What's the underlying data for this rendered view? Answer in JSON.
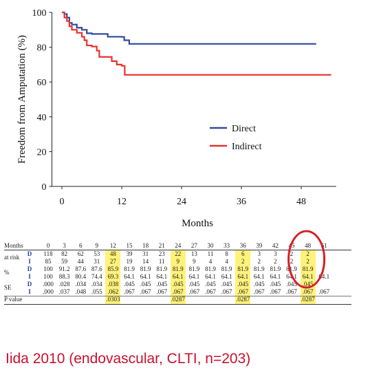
{
  "chart_data": {
    "type": "line",
    "xlabel": "Months",
    "ylabel": "Freedom from Amputation (%)",
    "xlim": [
      -2,
      55
    ],
    "ylim": [
      0,
      100
    ],
    "x_ticks": [
      "0",
      "12",
      "24",
      "36",
      "48"
    ],
    "y_ticks": [
      "0",
      "20",
      "40",
      "60",
      "80",
      "100"
    ],
    "legend_position": "right-middle",
    "series": [
      {
        "name": "Direct",
        "color": "#2e4a9e",
        "points": [
          [
            0,
            100
          ],
          [
            0.5,
            99
          ],
          [
            1,
            97
          ],
          [
            1.5,
            94
          ],
          [
            2,
            93
          ],
          [
            3,
            91.2
          ],
          [
            4,
            90
          ],
          [
            5,
            88
          ],
          [
            6,
            87.6
          ],
          [
            9,
            87.6
          ],
          [
            9.2,
            86
          ],
          [
            12,
            85.9
          ],
          [
            12.5,
            84
          ],
          [
            13.5,
            81.9
          ],
          [
            51,
            81.9
          ]
        ]
      },
      {
        "name": "Indirect",
        "color": "#e8322e",
        "points": [
          [
            0,
            100
          ],
          [
            0.5,
            97
          ],
          [
            1,
            95
          ],
          [
            1.5,
            92
          ],
          [
            2,
            90
          ],
          [
            3,
            88.3
          ],
          [
            4,
            86
          ],
          [
            4.5,
            84
          ],
          [
            5,
            81
          ],
          [
            6,
            80.4
          ],
          [
            7,
            78
          ],
          [
            7.5,
            74.4
          ],
          [
            9,
            74.4
          ],
          [
            10,
            72
          ],
          [
            11,
            70
          ],
          [
            12,
            69.3
          ],
          [
            12.6,
            64.1
          ],
          [
            54,
            64.1
          ]
        ]
      }
    ]
  },
  "table": {
    "header_label": "Months",
    "months": [
      "0",
      "3",
      "6",
      "9",
      "12",
      "15",
      "18",
      "21",
      "24",
      "27",
      "30",
      "33",
      "36",
      "39",
      "42",
      "45",
      "48",
      "51"
    ],
    "rows": [
      {
        "label": "at risk",
        "tag": "D",
        "values": [
          "118",
          "82",
          "62",
          "53",
          "48",
          "39",
          "31",
          "23",
          "22",
          "13",
          "11",
          "8",
          "6",
          "3",
          "3",
          "2",
          "2",
          ""
        ]
      },
      {
        "label": "",
        "tag": "I",
        "values": [
          "85",
          "59",
          "44",
          "31",
          "27",
          "19",
          "14",
          "11",
          "9",
          "9",
          "4",
          "4",
          "2",
          "2",
          "2",
          "2",
          "2",
          "1"
        ]
      },
      {
        "label": "%",
        "tag": "D",
        "values": [
          "100",
          "91.2",
          "87.6",
          "87.6",
          "85.9",
          "81.9",
          "81.9",
          "81.9",
          "81.9",
          "81.9",
          "81.9",
          "81.9",
          "81.9",
          "81.9",
          "81.9",
          "81.9",
          "81.9",
          ""
        ]
      },
      {
        "label": "",
        "tag": "I",
        "values": [
          "100",
          "88.3",
          "80.4",
          "74.4",
          "69.3",
          "64.1",
          "64.1",
          "64.1",
          "64.1",
          "64.1",
          "64.1",
          "64.1",
          "64.1",
          "64.1",
          "64.1",
          "64.1",
          "64.1",
          "64.1"
        ]
      },
      {
        "label": "SE",
        "tag": "D",
        "values": [
          ".000",
          ".028",
          ".034",
          ".034",
          ".038",
          ".045",
          ".045",
          ".045",
          ".045",
          ".045",
          ".045",
          ".045",
          ".045",
          ".045",
          ".045",
          ".045",
          ".045",
          ""
        ]
      },
      {
        "label": "",
        "tag": "I",
        "values": [
          ".000",
          ".037",
          ".048",
          ".055",
          ".062",
          ".067",
          ".067",
          ".067",
          ".067",
          ".067",
          ".067",
          ".067",
          ".067",
          ".067",
          ".067",
          ".067",
          ".067",
          ".067"
        ]
      },
      {
        "label": "P value",
        "tag": "",
        "values": [
          "",
          "",
          "",
          "",
          ".0303",
          "",
          "",
          "",
          ".0287",
          "",
          "",
          "",
          ".0287",
          "",
          "",
          "",
          ".0287",
          ""
        ]
      }
    ],
    "highlight_months": [
      "12",
      "24",
      "36",
      "48"
    ],
    "highlight_color": "#fff27a"
  },
  "caption": "Iida 2010 (endovascular, CLTI, n=203)",
  "annotation": {
    "type": "circle",
    "target_month": "48",
    "color": "#d61f26"
  }
}
